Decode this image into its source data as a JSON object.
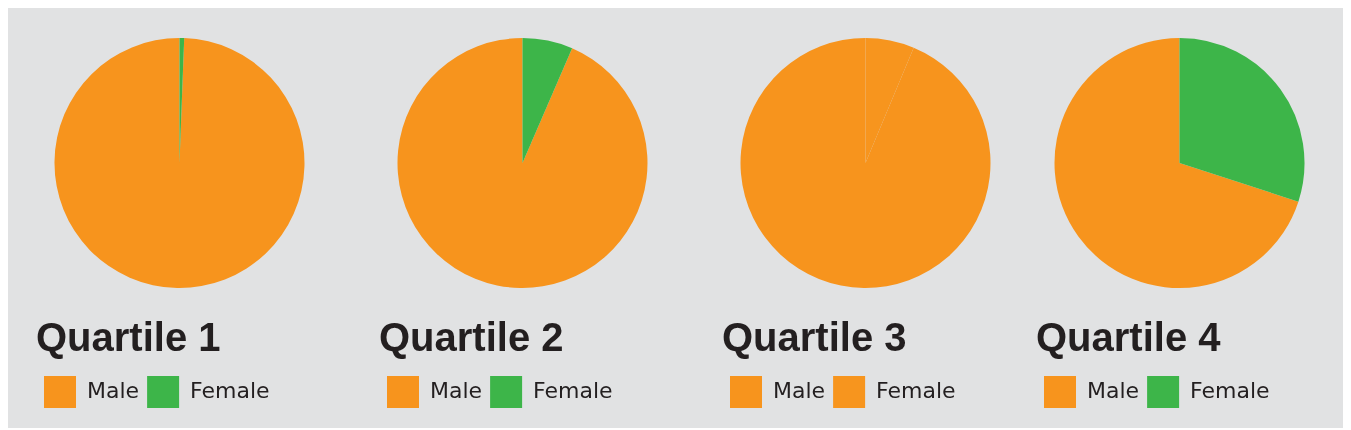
{
  "chart_data": [
    {
      "type": "pie",
      "title": "Quartile 1",
      "categories": [
        "Male",
        "Female"
      ],
      "values": [
        99.4,
        0.6
      ],
      "colors": [
        "#f7941d",
        "#3db549"
      ],
      "legend": "bottom"
    },
    {
      "type": "pie",
      "title": "Quartile 2",
      "categories": [
        "Male",
        "Female"
      ],
      "values": [
        93.5,
        6.5
      ],
      "colors": [
        "#f7941d",
        "#3db549"
      ],
      "legend": "bottom"
    },
    {
      "type": "pie",
      "title": "Quartile 3",
      "categories": [
        "Male",
        "Female"
      ],
      "values": [
        93.7,
        6.3
      ],
      "colors": [
        "#f7941d",
        "#f7951e"
      ],
      "legend": "bottom"
    },
    {
      "type": "pie",
      "title": "Quartile 4",
      "categories": [
        "Male",
        "Female"
      ],
      "values": [
        70,
        30
      ],
      "colors": [
        "#f7941d",
        "#3db549"
      ],
      "legend": "bottom"
    }
  ]
}
